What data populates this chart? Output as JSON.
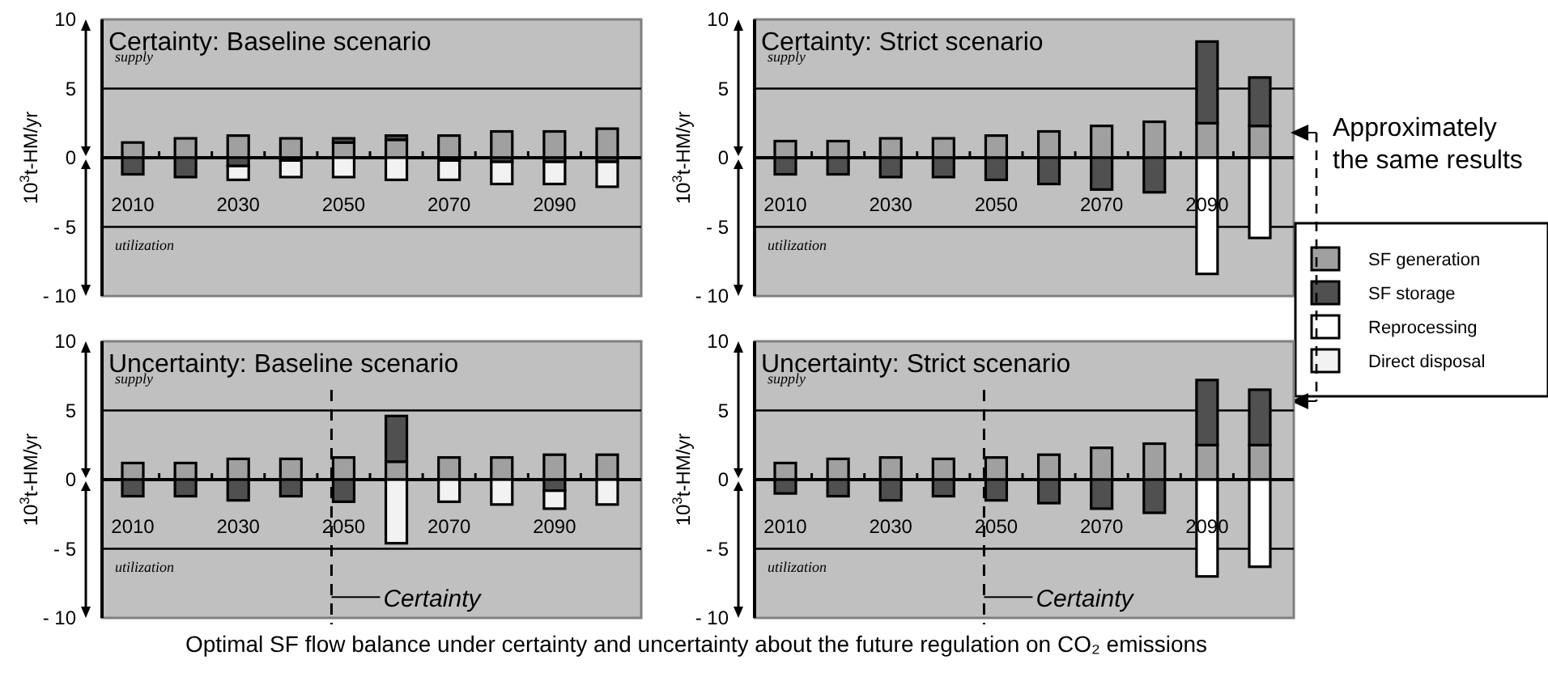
{
  "chart_data": [
    {
      "type": "bar",
      "stacked": true,
      "title": "Certainty: Baseline scenario",
      "ylabel": "10$^{3}$t-HM/yr",
      "categories": [
        "2010",
        null,
        "2030",
        null,
        "2050",
        null,
        "2070",
        null,
        "2090",
        null
      ],
      "ylim": [
        -10,
        10
      ],
      "yticks": [
        -10,
        -5,
        0,
        5,
        10
      ],
      "series": [
        {
          "color": "#a0a0a0",
          "values": [
            1.1,
            1.4,
            1.6,
            1.4,
            1.1,
            1.3,
            1.6,
            1.9,
            1.9,
            2.1
          ]
        },
        {
          "color": "#505050",
          "values": [
            -1.2,
            -1.4,
            -0.6,
            -0.2,
            0.3,
            0.3,
            -0.2,
            -0.3,
            -0.3,
            -0.3
          ]
        },
        {
          "color": "#f2f2f2",
          "values": [
            null,
            null,
            -1.0,
            -1.2,
            -1.4,
            -1.6,
            -1.4,
            -1.6,
            -1.6,
            -1.8
          ]
        }
      ],
      "ref_lines": [
        {
          "axis": "y",
          "value": 5,
          "label": "supply"
        },
        {
          "axis": "y",
          "value": -5,
          "label": "utilization"
        }
      ]
    },
    {
      "type": "bar",
      "stacked": true,
      "title": "Certainty: Strict scenario",
      "ylabel": "10$^{3}$t-HM/yr",
      "categories": [
        "2010",
        null,
        "2030",
        null,
        "2050",
        null,
        "2070",
        null,
        "2090",
        null
      ],
      "ylim": [
        -10,
        10
      ],
      "yticks": [
        -10,
        -5,
        0,
        5,
        10
      ],
      "legend": "right",
      "series": [
        {
          "name": "SF generation",
          "color": "#a0a0a0",
          "values": [
            1.2,
            1.2,
            1.4,
            1.4,
            1.6,
            1.9,
            2.3,
            2.6,
            2.5,
            2.3
          ]
        },
        {
          "name": "SF storage",
          "color": "#505050",
          "values": [
            -1.2,
            -1.2,
            -1.4,
            -1.4,
            -1.6,
            -1.9,
            -2.3,
            -2.5,
            5.9,
            3.5
          ]
        },
        {
          "name": "Reprocessing",
          "color": "#ffffff",
          "values": [
            null,
            null,
            null,
            null,
            null,
            null,
            null,
            null,
            -8.4,
            -5.8
          ]
        },
        {
          "name": "Direct disposal",
          "color": "#f2f2f2",
          "values": [
            null,
            null,
            null,
            null,
            null,
            null,
            null,
            null,
            null,
            null
          ]
        }
      ],
      "ref_lines": [
        {
          "axis": "y",
          "value": 5,
          "label": "supply"
        },
        {
          "axis": "y",
          "value": -5,
          "label": "utilization"
        }
      ],
      "annotations": [
        "Approximately the same results"
      ]
    },
    {
      "type": "bar",
      "stacked": true,
      "title": "Uncertainty: Baseline scenario",
      "ylabel": "10$^{3}$t-HM/yr",
      "categories": [
        "2010",
        null,
        "2030",
        null,
        "2050",
        null,
        "2070",
        null,
        "2090",
        null
      ],
      "ylim": [
        -10,
        10
      ],
      "yticks": [
        -10,
        -5,
        0,
        5,
        10
      ],
      "series": [
        {
          "color": "#a0a0a0",
          "values": [
            1.2,
            1.2,
            1.5,
            1.5,
            1.6,
            1.3,
            1.6,
            1.6,
            1.8,
            1.8
          ]
        },
        {
          "color": "#505050",
          "values": [
            -1.2,
            -1.2,
            -1.5,
            -1.2,
            -1.6,
            3.3,
            null,
            null,
            -0.8,
            null
          ]
        },
        {
          "color": "#f2f2f2",
          "values": [
            null,
            null,
            null,
            null,
            null,
            -4.6,
            -1.6,
            -1.8,
            -1.3,
            -1.8
          ]
        }
      ],
      "ref_lines": [
        {
          "axis": "y",
          "value": 5,
          "label": "supply"
        },
        {
          "axis": "y",
          "value": -5,
          "label": "utilization"
        },
        {
          "axis": "x",
          "value": "2050",
          "label": "Certainty",
          "line_style": "dashed"
        }
      ],
      "annotations": [
        "Optimal SF flow balance under certainty and uncertainty about the future regulation on CO₂ emissions"
      ]
    },
    {
      "type": "bar",
      "stacked": true,
      "title": "Uncertainty: Strict scenario",
      "ylabel": "10$^{3}$t-HM/yr",
      "categories": [
        "2010",
        null,
        "2030",
        null,
        "2050",
        null,
        "2070",
        null,
        "2090",
        null
      ],
      "ylim": [
        -10,
        10
      ],
      "yticks": [
        -10,
        -5,
        0,
        5,
        10
      ],
      "series": [
        {
          "color": "#a0a0a0",
          "values": [
            1.2,
            1.5,
            1.6,
            1.5,
            1.6,
            1.8,
            2.3,
            2.6,
            2.5,
            2.5
          ]
        },
        {
          "color": "#505050",
          "values": [
            -1.0,
            -1.2,
            -1.5,
            -1.2,
            -1.5,
            -1.7,
            -2.1,
            -2.4,
            4.7,
            4.0
          ]
        },
        {
          "color": "#ffffff",
          "values": [
            null,
            null,
            null,
            null,
            null,
            null,
            null,
            null,
            -7.0,
            -6.3
          ]
        }
      ],
      "ref_lines": [
        {
          "axis": "y",
          "value": 5,
          "label": "supply"
        },
        {
          "axis": "y",
          "value": -5,
          "label": "utilization"
        },
        {
          "axis": "x",
          "value": "2050",
          "label": "Certainty",
          "line_style": "dashed"
        }
      ]
    }
  ]
}
